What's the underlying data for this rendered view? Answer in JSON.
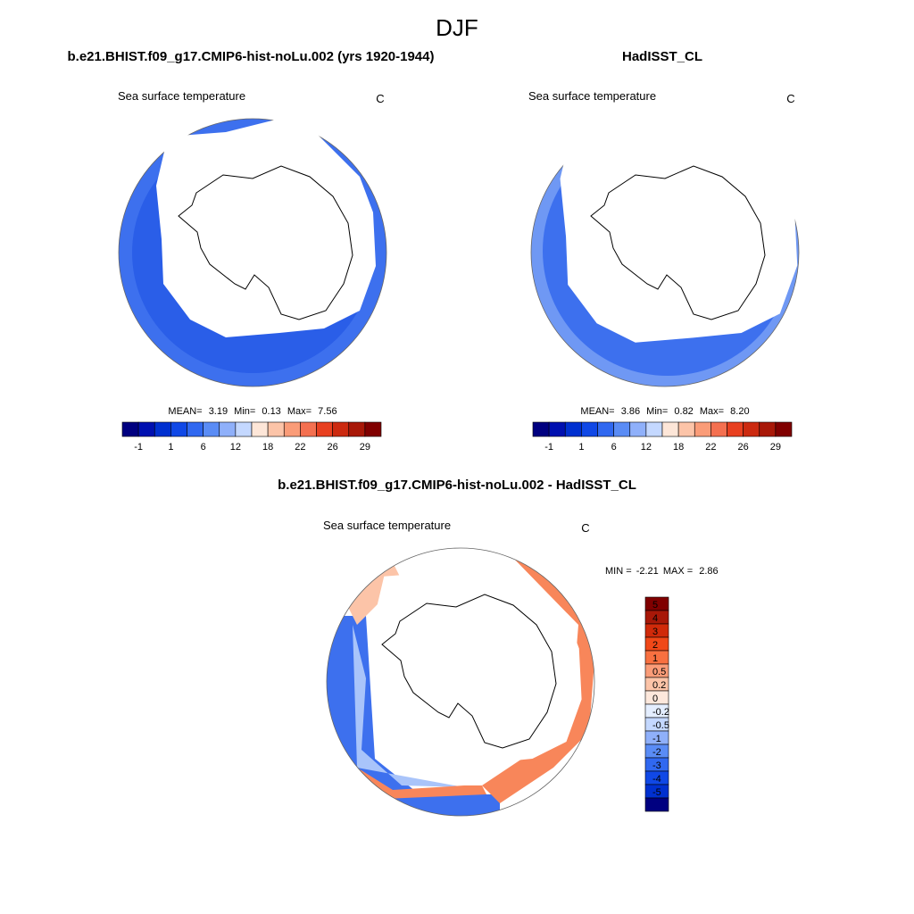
{
  "title": "DJF",
  "panels": [
    {
      "title": "b.e21.BHIST.f09_g17.CMIP6-hist-noLu.002 (yrs 1920-1944)",
      "variable": "Sea surface temperature",
      "units": "C",
      "stats": [
        "MEAN=",
        "3.19",
        "Min=",
        "0.13",
        "Max=",
        "7.56"
      ],
      "colorbar": {
        "labels": [
          "-1",
          "1",
          "6",
          "12",
          "18",
          "22",
          "26",
          "29"
        ],
        "colors": [
          "#000080",
          "#0010b0",
          "#0030d0",
          "#1048e6",
          "#3068f0",
          "#5a8cf5",
          "#8fb0fa",
          "#c4d8ff",
          "#fde6d8",
          "#fcc4a8",
          "#fa9c78",
          "#f47050",
          "#e84020",
          "#cc2a10",
          "#a81808",
          "#800000"
        ]
      }
    },
    {
      "title": "HadISST_CL",
      "variable": "Sea surface temperature",
      "units": "C",
      "stats": [
        "MEAN=",
        "3.86",
        "Min=",
        "0.82",
        "Max=",
        "8.20"
      ],
      "colorbar": {
        "labels": [
          "-1",
          "1",
          "6",
          "12",
          "18",
          "22",
          "26",
          "29"
        ],
        "colors": [
          "#000080",
          "#0010b0",
          "#0030d0",
          "#1048e6",
          "#3068f0",
          "#5a8cf5",
          "#8fb0fa",
          "#c4d8ff",
          "#fde6d8",
          "#fcc4a8",
          "#fa9c78",
          "#f47050",
          "#e84020",
          "#cc2a10",
          "#a81808",
          "#800000"
        ]
      }
    },
    {
      "title": "b.e21.BHIST.f09_g17.CMIP6-hist-noLu.002 - HadISST_CL",
      "variable": "Sea surface temperature",
      "units": "C",
      "stats": [
        "MIN =",
        "-2.21",
        "MAX =",
        "2.86"
      ],
      "colorbar": {
        "labels": [
          "5",
          "4",
          "3",
          "2",
          "1",
          "0.5",
          "0.2",
          "0",
          "-0.2",
          "-0.5",
          "-1",
          "-2",
          "-3",
          "-4",
          "-5"
        ],
        "colors": [
          "#800000",
          "#a81808",
          "#d02a0a",
          "#f04818",
          "#f87040",
          "#fa9c78",
          "#fcc4a8",
          "#fde8dc",
          "#e4eeff",
          "#c4d8ff",
          "#8fb0fa",
          "#5a8cf5",
          "#3068f0",
          "#1048e6",
          "#0030d0",
          "#000080"
        ]
      }
    }
  ]
}
